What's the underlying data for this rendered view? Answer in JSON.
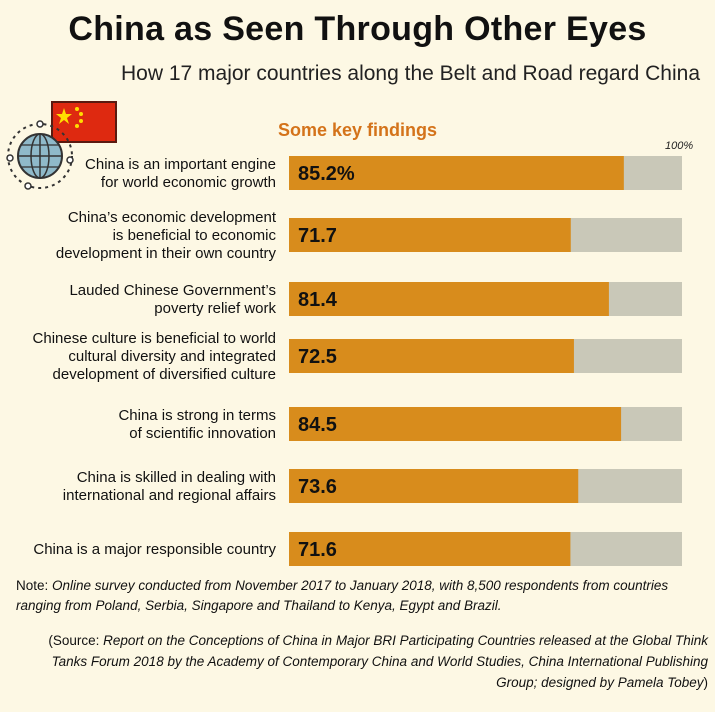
{
  "header": {
    "title": "China as Seen Through Other Eyes",
    "subtitle": "How 17 major countries along the Belt and Road regard China"
  },
  "chart_data": {
    "type": "bar",
    "orientation": "horizontal",
    "title": "Some key findings",
    "axis_max_label": "100%",
    "xlim": [
      0,
      100
    ],
    "categories": [
      [
        "China is an important engine",
        "for world economic growth"
      ],
      [
        "China’s economic development",
        "is beneficial to economic",
        "development in their own country"
      ],
      [
        "Lauded Chinese Government’s",
        "poverty relief work"
      ],
      [
        "Chinese culture is beneficial to world",
        "cultural diversity and integrated",
        "development of diversified culture"
      ],
      [
        "China is strong in terms",
        "of scientific innovation"
      ],
      [
        "China is skilled in dealing with",
        "international and regional affairs"
      ],
      [
        "China is a major responsible country"
      ]
    ],
    "values": [
      85.2,
      71.7,
      81.4,
      72.5,
      84.5,
      73.6,
      71.6
    ],
    "value_labels": [
      "85.2%",
      "71.7",
      "81.4",
      "72.5",
      "84.5",
      "73.6",
      "71.6"
    ],
    "colors": {
      "bar": "#d88c1c",
      "track": "#c9c8b8"
    }
  },
  "footer": {
    "note_prefix": "Note: ",
    "note_text": "Online survey conducted from November 2017 to January 2018, with 8,500 respondents from countries ranging from Poland, Serbia, Singapore and Thailand to Kenya, Egypt and Brazil.",
    "source_prefix": "(Source: ",
    "source_text": "Report on the Conceptions of China in Major BRI Participating Countries released at the Global Think Tanks Forum 2018 by the Academy of Contemporary China and World Studies, China International Publishing Group; designed by Pamela Tobey",
    "source_suffix": ")"
  },
  "icons": [
    "china-flag-icon",
    "globe-network-icon"
  ]
}
